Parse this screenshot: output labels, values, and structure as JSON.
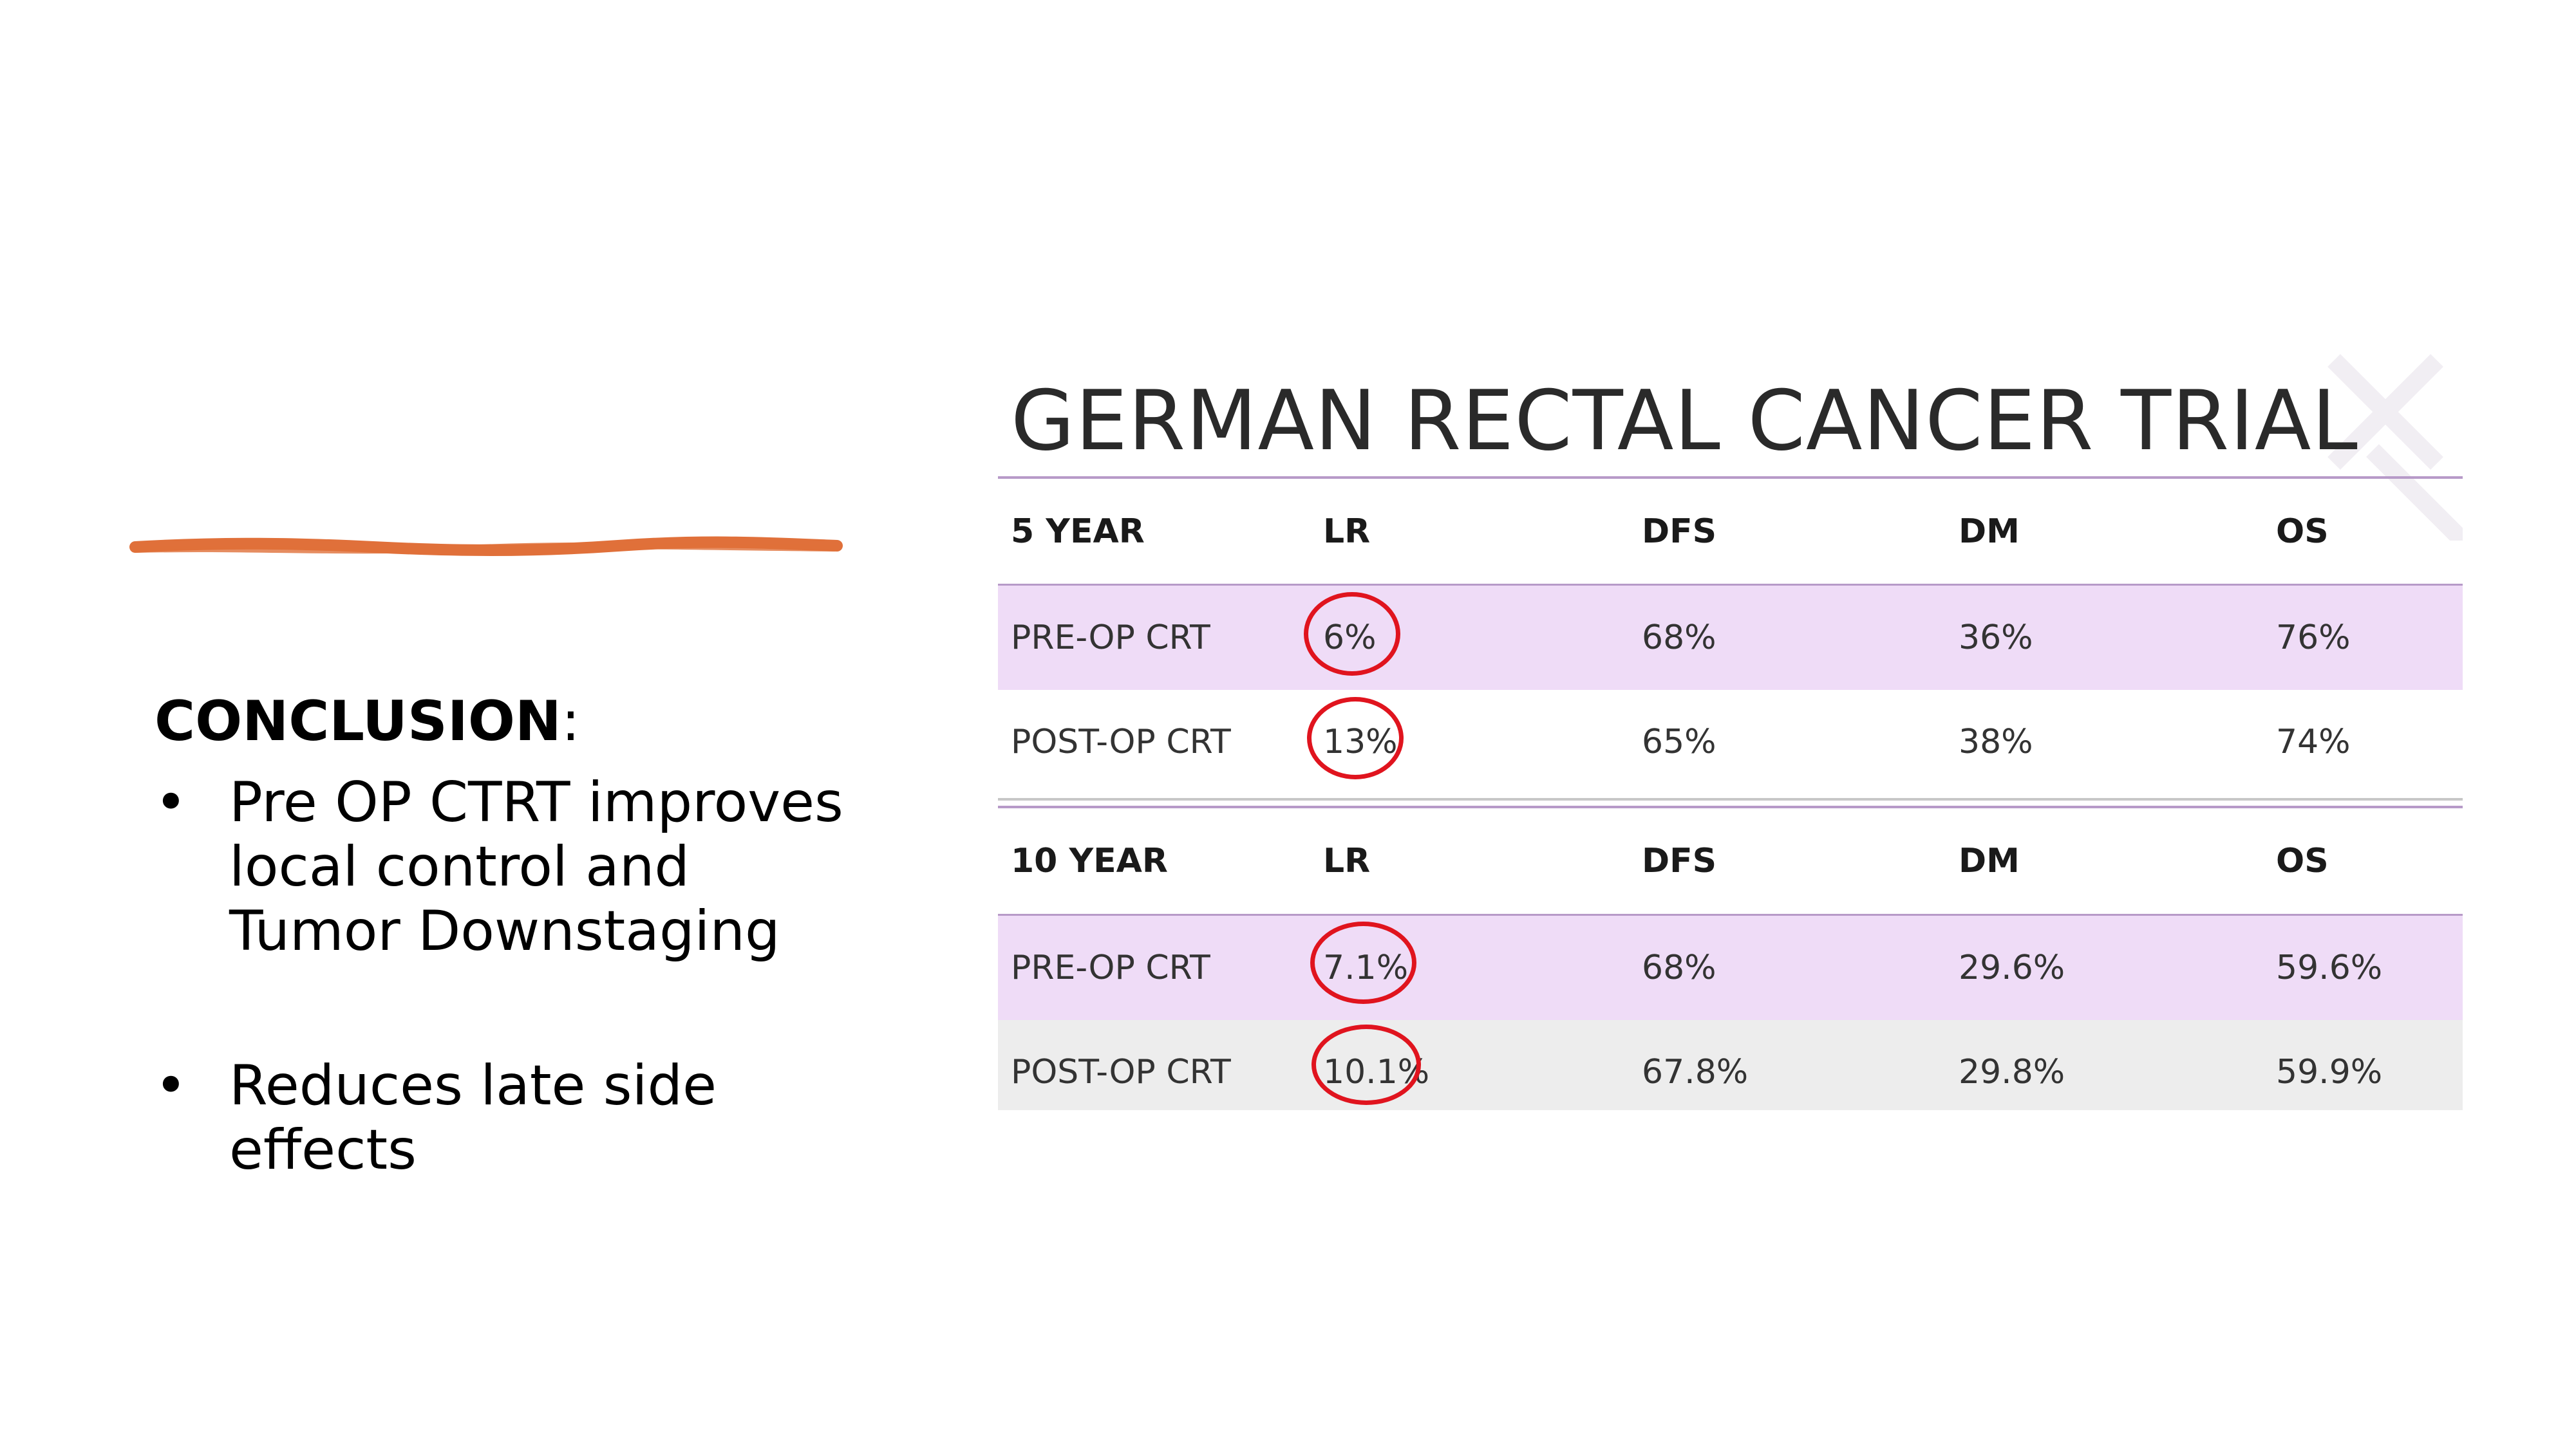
{
  "conclusion": {
    "heading": "CONCLUSION",
    "heading_suffix": ":",
    "bullets": [
      "Pre OP CTRT improves local control and Tumor Downstaging",
      "Reduces late side effects"
    ]
  },
  "trial": {
    "title": "GERMAN RECTAL CANCER TRIAL",
    "five_year": {
      "header": [
        "5 YEAR",
        "LR",
        "DFS",
        "DM",
        "OS"
      ],
      "rows": [
        [
          "PRE-OP CRT",
          "6%",
          "68%",
          "36%",
          "76%"
        ],
        [
          "POST-OP CRT",
          "13%",
          "65%",
          "38%",
          "74%"
        ]
      ]
    },
    "ten_year": {
      "header": [
        "10 YEAR",
        "LR",
        "DFS",
        "DM",
        "OS"
      ],
      "rows": [
        [
          "PRE-OP CRT",
          "7.1%",
          "68%",
          "29.6%",
          "59.6%"
        ],
        [
          "POST-OP CRT",
          "10.1%",
          "67.8%",
          "29.8%",
          "59.9%"
        ]
      ]
    }
  },
  "colors": {
    "accent_line": "#e0703a",
    "highlight_row": "#efdcf7",
    "circle": "#e0141e"
  }
}
